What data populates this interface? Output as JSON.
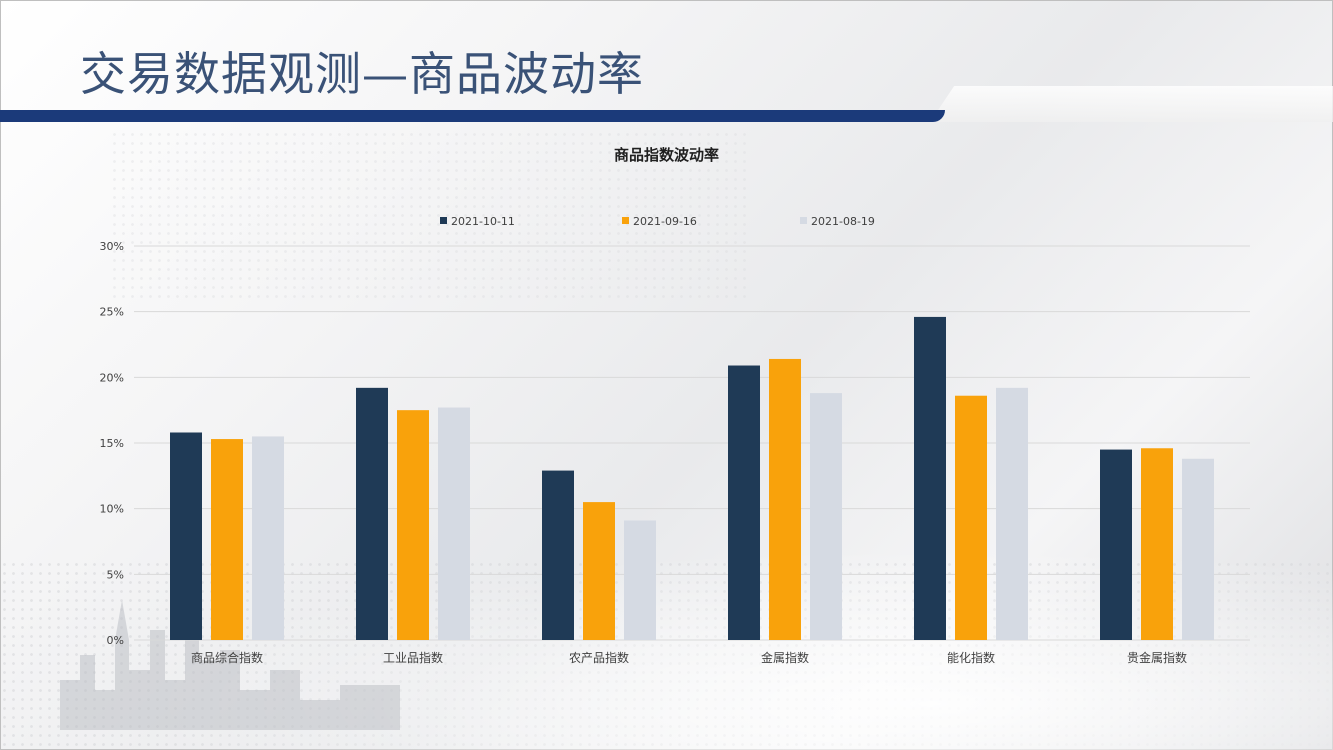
{
  "slide": {
    "title": "交易数据观测—商品波动率"
  },
  "colors": {
    "series_1": "#1f3a56",
    "series_2": "#f9a20b",
    "series_3": "#d5dae3",
    "grid": "#d9d9d9",
    "title_bar": "#1b3a7a",
    "title_text": "#3a5277"
  },
  "chart_data": {
    "type": "bar",
    "title": "商品指数波动率",
    "xlabel": "",
    "ylabel": "",
    "categories": [
      "商品综合指数",
      "工业品指数",
      "农产品指数",
      "金属指数",
      "能化指数",
      "贵金属指数"
    ],
    "series": [
      {
        "name": "2021-10-11",
        "values": [
          15.8,
          19.2,
          12.9,
          20.9,
          24.6,
          14.5
        ]
      },
      {
        "name": "2021-09-16",
        "values": [
          15.3,
          17.5,
          10.5,
          21.4,
          18.6,
          14.6
        ]
      },
      {
        "name": "2021-08-19",
        "values": [
          15.5,
          17.7,
          9.1,
          18.8,
          19.2,
          13.8
        ]
      }
    ],
    "ylim": [
      0,
      30
    ],
    "yticks": [
      "0%",
      "5%",
      "10%",
      "15%",
      "20%",
      "25%",
      "30%"
    ],
    "ytick_values": [
      0,
      5,
      10,
      15,
      20,
      25,
      30
    ],
    "grid": true,
    "legend_position": "top"
  }
}
